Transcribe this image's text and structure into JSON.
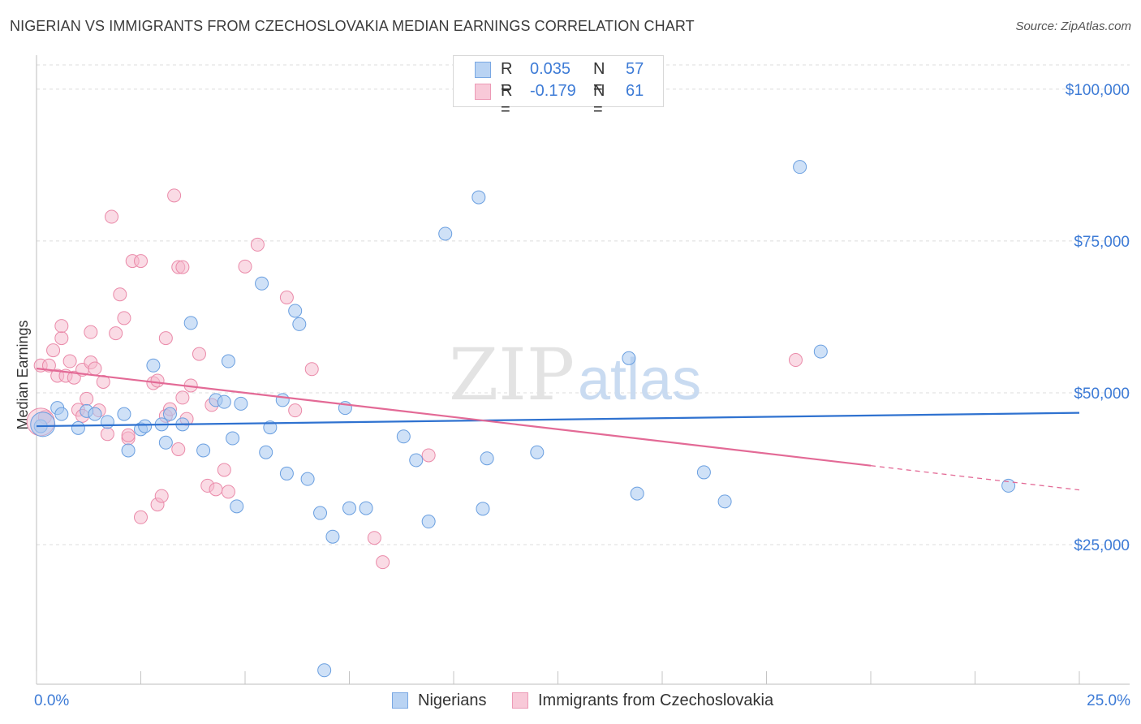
{
  "title": "NIGERIAN VS IMMIGRANTS FROM CZECHOSLOVAKIA MEDIAN EARNINGS CORRELATION CHART",
  "source": "Source: ZipAtlas.com",
  "watermark": {
    "zip": "ZIP",
    "atlas": "atlas"
  },
  "legend": {
    "rows": [
      {
        "r_label": "R =",
        "r_value": "0.035",
        "n_label": "N =",
        "n_value": "57"
      },
      {
        "r_label": "R =",
        "r_value": "-0.179",
        "n_label": "N =",
        "n_value": "61"
      }
    ]
  },
  "bottom_legend": {
    "series1": "Nigerians",
    "series2": "Immigrants from Czechoslovakia"
  },
  "colors": {
    "blue_fill": "#a8c8f0",
    "blue_stroke": "#6a9fe0",
    "blue_line": "#2f72d0",
    "pink_fill": "#f5b8cb",
    "pink_stroke": "#ea8aa9",
    "pink_line": "#e36a96",
    "axis_text": "#3d7bd6",
    "grid": "#dcdcdc"
  },
  "chart_data": {
    "type": "scatter",
    "title": "NIGERIAN VS IMMIGRANTS FROM CZECHOSLOVAKIA MEDIAN EARNINGS CORRELATION CHART",
    "xlabel": "",
    "ylabel": "Median Earnings",
    "xlim": [
      0,
      25
    ],
    "ylim": [
      2000,
      104000
    ],
    "x_tick_labels": [
      "0.0%",
      "25.0%"
    ],
    "y_ticks": [
      25000,
      50000,
      75000,
      100000
    ],
    "y_tick_labels": [
      "$25,000",
      "$50,000",
      "$75,000",
      "$100,000"
    ],
    "series": [
      {
        "name": "Nigerians",
        "r": 0.035,
        "n": 57,
        "trend": {
          "x": [
            0,
            25
          ],
          "y": [
            44500,
            46700
          ]
        },
        "points": [
          [
            0.1,
            44500
          ],
          [
            0.5,
            47500
          ],
          [
            0.6,
            46500
          ],
          [
            1.0,
            44200
          ],
          [
            1.2,
            47000
          ],
          [
            1.4,
            46500
          ],
          [
            1.7,
            45200
          ],
          [
            2.1,
            46500
          ],
          [
            2.2,
            40500
          ],
          [
            2.5,
            44000
          ],
          [
            2.6,
            44500
          ],
          [
            2.8,
            54500
          ],
          [
            3.2,
            46500
          ],
          [
            3.0,
            44800
          ],
          [
            3.1,
            41800
          ],
          [
            3.5,
            44800
          ],
          [
            3.7,
            61500
          ],
          [
            4.0,
            40500
          ],
          [
            4.3,
            48800
          ],
          [
            4.5,
            48500
          ],
          [
            4.6,
            55200
          ],
          [
            4.7,
            42500
          ],
          [
            4.8,
            31300
          ],
          [
            4.9,
            48200
          ],
          [
            5.4,
            68000
          ],
          [
            5.5,
            40200
          ],
          [
            5.6,
            44300
          ],
          [
            5.9,
            48800
          ],
          [
            6.0,
            36700
          ],
          [
            6.2,
            63500
          ],
          [
            6.3,
            61300
          ],
          [
            6.5,
            35800
          ],
          [
            6.8,
            30200
          ],
          [
            6.9,
            4300
          ],
          [
            7.1,
            26300
          ],
          [
            7.4,
            47500
          ],
          [
            7.5,
            31000
          ],
          [
            7.9,
            31000
          ],
          [
            8.8,
            42800
          ],
          [
            9.1,
            38900
          ],
          [
            9.4,
            28800
          ],
          [
            9.8,
            76200
          ],
          [
            10.6,
            82200
          ],
          [
            10.7,
            30900
          ],
          [
            10.8,
            39200
          ],
          [
            12.0,
            40200
          ],
          [
            14.2,
            55700
          ],
          [
            14.4,
            33400
          ],
          [
            16.0,
            36900
          ],
          [
            16.5,
            32100
          ],
          [
            18.3,
            87200
          ],
          [
            18.8,
            56800
          ],
          [
            23.3,
            34700
          ]
        ],
        "big_point": [
          0.15,
          44800
        ]
      },
      {
        "name": "Immigrants from Czechoslovakia",
        "r": -0.179,
        "n": 61,
        "trend": {
          "x": [
            0,
            20
          ],
          "y": [
            54000,
            38000
          ]
        },
        "trend_dashed": {
          "x": [
            20,
            25
          ],
          "y": [
            38000,
            34000
          ]
        },
        "points": [
          [
            0.1,
            54500
          ],
          [
            0.2,
            46000
          ],
          [
            0.3,
            54500
          ],
          [
            0.4,
            57000
          ],
          [
            0.5,
            52800
          ],
          [
            0.6,
            59000
          ],
          [
            0.6,
            61000
          ],
          [
            0.7,
            52800
          ],
          [
            0.8,
            55200
          ],
          [
            0.9,
            52500
          ],
          [
            1.0,
            47200
          ],
          [
            1.1,
            53800
          ],
          [
            1.1,
            46200
          ],
          [
            1.2,
            49000
          ],
          [
            1.3,
            55000
          ],
          [
            1.3,
            60000
          ],
          [
            1.4,
            54000
          ],
          [
            1.5,
            47100
          ],
          [
            1.6,
            51800
          ],
          [
            1.7,
            43200
          ],
          [
            1.8,
            79000
          ],
          [
            1.9,
            59800
          ],
          [
            2.0,
            66200
          ],
          [
            2.1,
            62300
          ],
          [
            2.2,
            42500
          ],
          [
            2.2,
            43000
          ],
          [
            2.3,
            71700
          ],
          [
            2.5,
            71700
          ],
          [
            2.5,
            29500
          ],
          [
            2.8,
            51600
          ],
          [
            2.9,
            52000
          ],
          [
            2.9,
            31600
          ],
          [
            3.0,
            33000
          ],
          [
            3.1,
            59000
          ],
          [
            3.1,
            46200
          ],
          [
            3.2,
            47300
          ],
          [
            3.3,
            82500
          ],
          [
            3.4,
            70700
          ],
          [
            3.4,
            40700
          ],
          [
            3.5,
            70700
          ],
          [
            3.5,
            49200
          ],
          [
            3.6,
            45700
          ],
          [
            3.7,
            51200
          ],
          [
            3.9,
            56400
          ],
          [
            4.1,
            34700
          ],
          [
            4.2,
            48000
          ],
          [
            4.3,
            34100
          ],
          [
            4.5,
            37300
          ],
          [
            4.6,
            33700
          ],
          [
            5.0,
            70800
          ],
          [
            5.3,
            74400
          ],
          [
            6.0,
            65700
          ],
          [
            6.2,
            47100
          ],
          [
            6.6,
            53900
          ],
          [
            8.1,
            26100
          ],
          [
            8.3,
            22100
          ],
          [
            9.4,
            39700
          ],
          [
            18.2,
            55400
          ]
        ],
        "big_point": [
          0.1,
          45200
        ]
      }
    ]
  }
}
